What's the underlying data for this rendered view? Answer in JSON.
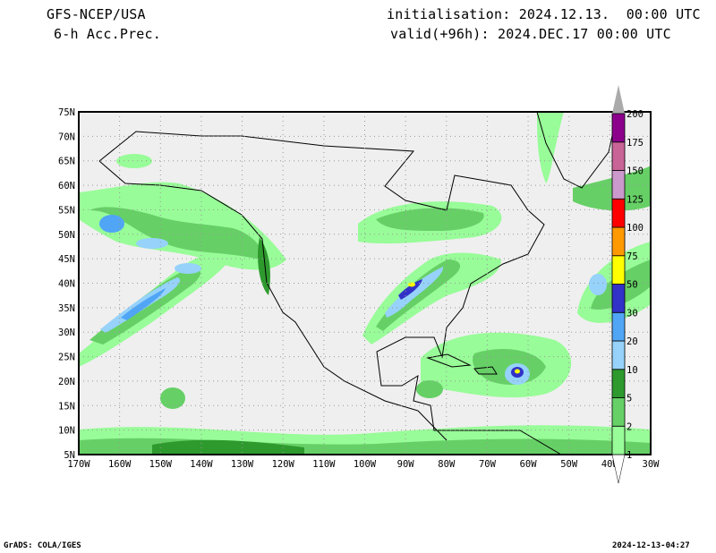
{
  "header": {
    "model": "GFS-NCEP/USA",
    "field": "6-h Acc.Prec.",
    "init": "initialisation: 2024.12.13.  00:00 UTC",
    "valid": "valid(+96h): 2024.DEC.17 00:00 UTC"
  },
  "map": {
    "lon_labels": [
      "170W",
      "160W",
      "150W",
      "140W",
      "130W",
      "120W",
      "110W",
      "100W",
      "90W",
      "80W",
      "70W",
      "60W",
      "50W",
      "40W",
      "30W"
    ],
    "lat_labels": [
      "5N",
      "10N",
      "15N",
      "20N",
      "25N",
      "30N",
      "35N",
      "40N",
      "45N",
      "50N",
      "55N",
      "60N",
      "65N",
      "70N",
      "75N"
    ],
    "background_color": "#efefef"
  },
  "colorbar": {
    "levels": [
      "1",
      "2",
      "5",
      "10",
      "20",
      "30",
      "50",
      "75",
      "100",
      "125",
      "150",
      "175",
      "200"
    ],
    "colors": [
      "#98fc98",
      "#66d066",
      "#2e9a2e",
      "#96d2fa",
      "#50a5f5",
      "#3232c8",
      "#ffff00",
      "#ff9900",
      "#ff0000",
      "#cc99cc",
      "#c86496",
      "#8c008c"
    ],
    "over_color": "#aaaaaa",
    "under_color": "#ffffff"
  },
  "footer": {
    "left": "GrADS: COLA/IGES",
    "right": "2024-12-13-04:27"
  }
}
